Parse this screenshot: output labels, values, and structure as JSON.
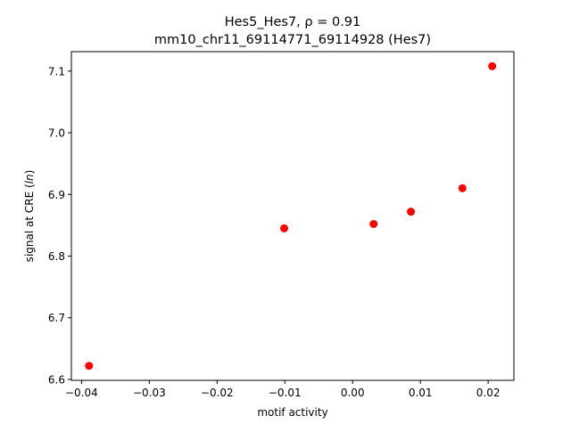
{
  "chart_data": {
    "type": "scatter",
    "title_line1": "Hes5_Hes7, ρ = 0.91",
    "title_line2": "mm10_chr11_69114771_69114928 (Hes7)",
    "xlabel": "motif activity",
    "ylabel": "signal at CRE (ln)",
    "xlim": [
      -0.0415,
      0.0238
    ],
    "ylim": [
      6.5985,
      7.1315
    ],
    "xticks": [
      -0.04,
      -0.03,
      -0.02,
      -0.01,
      0.0,
      0.01,
      0.02
    ],
    "xtick_labels": [
      "−0.04",
      "−0.03",
      "−0.02",
      "−0.01",
      "0.00",
      "0.01",
      "0.02"
    ],
    "yticks": [
      6.6,
      6.7,
      6.8,
      6.9,
      7.0,
      7.1
    ],
    "ytick_labels": [
      "6.6",
      "6.7",
      "6.8",
      "6.9",
      "7.0",
      "7.1"
    ],
    "grid": false,
    "legend": "none",
    "marker_color": "#ff0000",
    "points": [
      {
        "x": -0.0389,
        "y": 6.622
      },
      {
        "x": -0.0101,
        "y": 6.845
      },
      {
        "x": 0.0031,
        "y": 6.852
      },
      {
        "x": 0.0086,
        "y": 6.872
      },
      {
        "x": 0.0162,
        "y": 6.91
      },
      {
        "x": 0.0206,
        "y": 7.108
      }
    ]
  }
}
